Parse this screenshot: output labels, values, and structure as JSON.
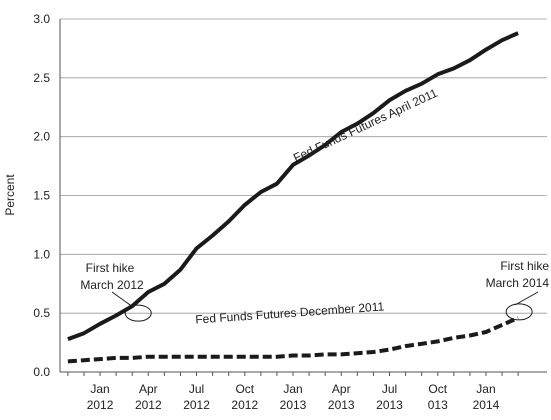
{
  "chart_data": {
    "type": "line",
    "title": "",
    "xlabel": "",
    "ylabel": "Percent",
    "ylim": [
      0,
      3.0
    ],
    "yticks": [
      "0.0",
      "0.5",
      "1.0",
      "1.5",
      "2.0",
      "2.5",
      "3.0"
    ],
    "grid": "horizontal",
    "x_tick_labels": [
      {
        "month": "Jan",
        "year": "2012"
      },
      {
        "month": "Apr",
        "year": "2012"
      },
      {
        "month": "Jul",
        "year": "2012"
      },
      {
        "month": "Oct",
        "year": "2012"
      },
      {
        "month": "Jan",
        "year": "2013"
      },
      {
        "month": "Apr",
        "year": "2013"
      },
      {
        "month": "Jul",
        "year": "2013"
      },
      {
        "month": "Oct",
        "year": "013"
      },
      {
        "month": "Jan",
        "year": "2014"
      }
    ],
    "x": [
      "Nov 2011",
      "Dec 2011",
      "Jan 2012",
      "Feb 2012",
      "Mar 2012",
      "Apr 2012",
      "May 2012",
      "Jun 2012",
      "Jul 2012",
      "Aug 2012",
      "Sep 2012",
      "Oct 2012",
      "Nov 2012",
      "Dec 2012",
      "Jan 2013",
      "Feb 2013",
      "Mar 2013",
      "Apr 2013",
      "May 2013",
      "Jun 2013",
      "Jul 2013",
      "Aug 2013",
      "Sep 2013",
      "Oct 2013",
      "Nov 2013",
      "Dec 2013",
      "Jan 2014",
      "Feb 2014",
      "Mar 2014"
    ],
    "series": [
      {
        "name": "Fed Funds Futures April 2011",
        "style": "solid",
        "values": [
          0.28,
          0.33,
          0.41,
          0.48,
          0.56,
          0.68,
          0.75,
          0.87,
          1.05,
          1.16,
          1.28,
          1.42,
          1.53,
          1.6,
          1.76,
          1.84,
          1.93,
          2.04,
          2.11,
          2.2,
          2.31,
          2.39,
          2.45,
          2.53,
          2.58,
          2.65,
          2.74,
          2.82,
          2.88
        ]
      },
      {
        "name": "Fed Funds Futures December 2011",
        "style": "dashed",
        "values": [
          0.09,
          0.1,
          0.11,
          0.12,
          0.12,
          0.13,
          0.13,
          0.13,
          0.13,
          0.13,
          0.13,
          0.13,
          0.13,
          0.13,
          0.14,
          0.14,
          0.15,
          0.15,
          0.16,
          0.17,
          0.19,
          0.22,
          0.24,
          0.26,
          0.29,
          0.31,
          0.34,
          0.4,
          0.46
        ]
      }
    ],
    "annotations": [
      {
        "line1": "First hike",
        "line2": "March 2012",
        "x": "Mar 2012",
        "y": 0.5
      },
      {
        "line1": "First hike",
        "line2": "March 2014",
        "x": "Mar 2014",
        "y": 0.46
      }
    ],
    "series_labels": [
      "Fed Funds Futures April 2011",
      "Fed Funds Futures December 2011"
    ]
  },
  "colors": {
    "line": "#1a1a1a",
    "grid": "#9a9a9a",
    "frame": "#555555"
  }
}
